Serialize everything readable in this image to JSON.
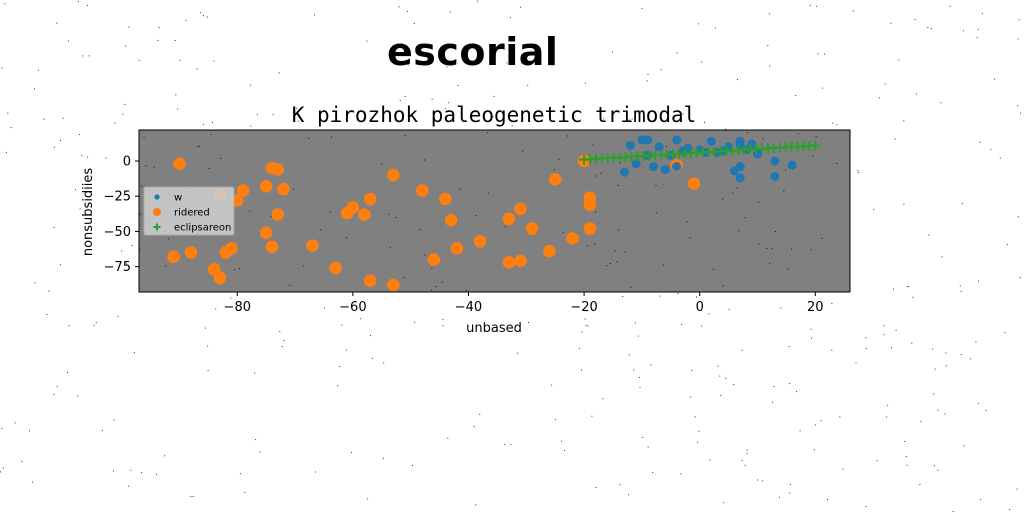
{
  "figure": {
    "suptitle": "escorial"
  },
  "colors": {
    "plot_bg": "#808080",
    "series_w": "#1f77b4",
    "series_ridered": "#ff7f0e",
    "series_eclipsareon": "#2ca02c"
  },
  "chart_data": {
    "type": "scatter",
    "title": "K pirozhok paleogenetic trimodal",
    "xlabel": "unbased",
    "ylabel": "nonsubsidiies",
    "xlim": [
      -97,
      26
    ],
    "ylim": [
      -93,
      22
    ],
    "xticks": [
      -80,
      -60,
      -40,
      -20,
      0,
      20
    ],
    "xtick_labels": [
      "−80",
      "−60",
      "−40",
      "−20",
      "0",
      "20"
    ],
    "yticks": [
      0,
      -25,
      -50,
      -75
    ],
    "ytick_labels": [
      "0",
      "−25",
      "−50",
      "−75"
    ],
    "grid": false,
    "legend_position": "center-left",
    "series": [
      {
        "name": "w",
        "marker": "circle-small",
        "color": "#1f77b4",
        "points": [
          [
            -13,
            -8
          ],
          [
            -12,
            11
          ],
          [
            -11,
            -2
          ],
          [
            -10,
            15
          ],
          [
            -9,
            15
          ],
          [
            -9,
            4
          ],
          [
            -8,
            -4
          ],
          [
            -7,
            10
          ],
          [
            -6,
            -6
          ],
          [
            -5,
            4
          ],
          [
            -4,
            15
          ],
          [
            -4,
            -4
          ],
          [
            -3,
            7
          ],
          [
            -2,
            9
          ],
          [
            0,
            8
          ],
          [
            1,
            6
          ],
          [
            2,
            14
          ],
          [
            3,
            6
          ],
          [
            4,
            7
          ],
          [
            5,
            10
          ],
          [
            6,
            -7
          ],
          [
            7,
            -4
          ],
          [
            7,
            14
          ],
          [
            7,
            11
          ],
          [
            7,
            -12
          ],
          [
            8,
            8
          ],
          [
            9,
            12
          ],
          [
            10,
            5
          ],
          [
            13,
            0
          ],
          [
            13,
            -11
          ],
          [
            16,
            -3
          ]
        ]
      },
      {
        "name": "ridered",
        "marker": "circle-large",
        "color": "#ff7f0e",
        "points": [
          [
            -91,
            -68
          ],
          [
            -90,
            -2
          ],
          [
            -88,
            -65
          ],
          [
            -84,
            -77
          ],
          [
            -83,
            -83
          ],
          [
            -83,
            -24
          ],
          [
            -82,
            -65
          ],
          [
            -81,
            -62
          ],
          [
            -80,
            -28
          ],
          [
            -79,
            -21
          ],
          [
            -75,
            -51
          ],
          [
            -75,
            -18
          ],
          [
            -74,
            -5
          ],
          [
            -74,
            -61
          ],
          [
            -73,
            -38
          ],
          [
            -73,
            -6
          ],
          [
            -72,
            -20
          ],
          [
            -67,
            -60
          ],
          [
            -63,
            -76
          ],
          [
            -61,
            -37
          ],
          [
            -60,
            -33
          ],
          [
            -58,
            -38
          ],
          [
            -57,
            -27
          ],
          [
            -57,
            -85
          ],
          [
            -53,
            -10
          ],
          [
            -53,
            -88
          ],
          [
            -48,
            -21
          ],
          [
            -46,
            -70
          ],
          [
            -44,
            -27
          ],
          [
            -43,
            -42
          ],
          [
            -42,
            -62
          ],
          [
            -38,
            -57
          ],
          [
            -33,
            -41
          ],
          [
            -33,
            -72
          ],
          [
            -31,
            -34
          ],
          [
            -31,
            -71
          ],
          [
            -29,
            -48
          ],
          [
            -26,
            -64
          ],
          [
            -25,
            -13
          ],
          [
            -22,
            -55
          ],
          [
            -20,
            0
          ],
          [
            -19,
            -26
          ],
          [
            -19,
            -31
          ],
          [
            -19,
            -48
          ],
          [
            -4,
            -3
          ],
          [
            -1,
            -16
          ]
        ]
      },
      {
        "name": "eclipsareon",
        "marker": "plus",
        "color": "#2ca02c",
        "x_start": -20,
        "x_end": 20,
        "y_start": 1,
        "y_end": 11,
        "count": 40
      }
    ]
  }
}
